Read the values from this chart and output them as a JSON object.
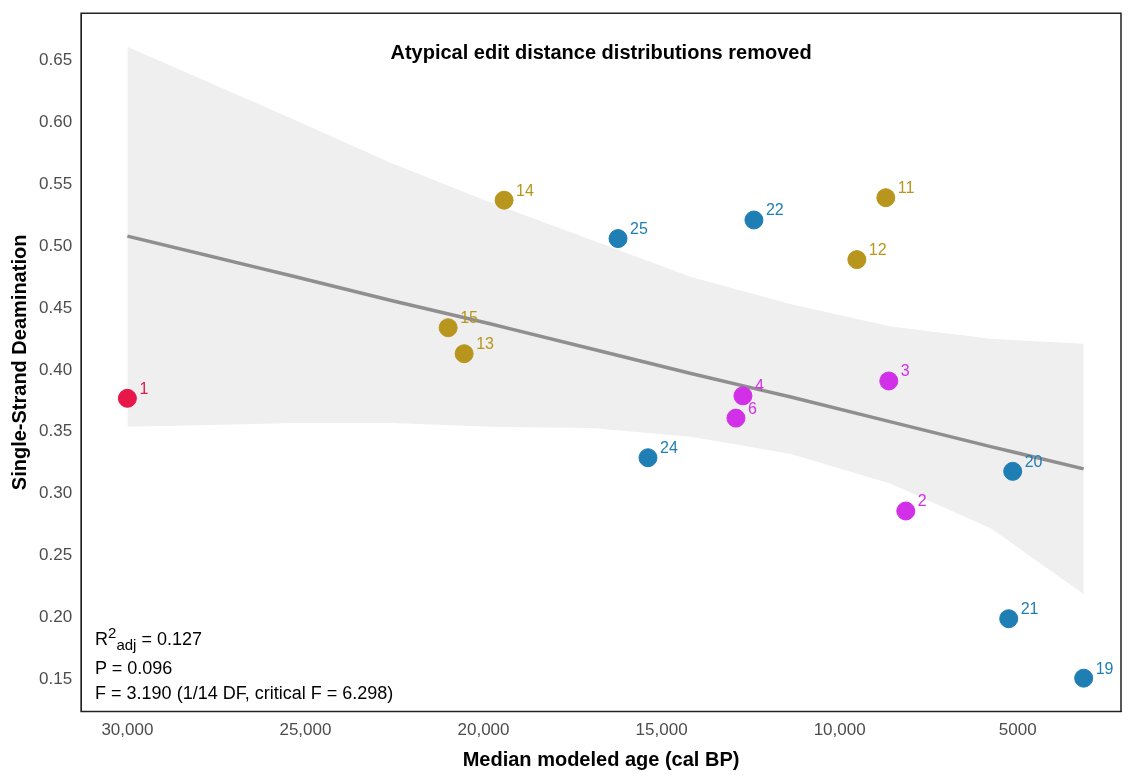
{
  "chart_data": {
    "type": "scatter",
    "title": "Atypical edit distance distributions removed",
    "xlabel": "Median modeled age (cal BP)",
    "ylabel": "Single-Strand Deamination",
    "xlim": [
      31300,
      2100
    ],
    "xticks": [
      {
        "value": 30000,
        "label": "30,000"
      },
      {
        "value": 25000,
        "label": "25,000"
      },
      {
        "value": 20000,
        "label": "20,000"
      },
      {
        "value": 15000,
        "label": "15,000"
      },
      {
        "value": 10000,
        "label": "10,000"
      },
      5000
    ],
    "ylim": [
      0.124,
      0.688
    ],
    "yticks": [
      0.15,
      {
        "value": 0.2,
        "label": "0.20"
      },
      0.25,
      {
        "value": 0.3,
        "label": "0.30"
      },
      0.35,
      {
        "value": 0.4,
        "label": "0.40"
      },
      0.45,
      {
        "value": 0.5,
        "label": "0.50"
      },
      0.55,
      {
        "value": 0.6,
        "label": "0.60"
      },
      0.65
    ],
    "marker": "circle",
    "series": [
      {
        "type": "line",
        "color": "#8f8f8f",
        "marker": "none",
        "x": [
          30000,
          25398,
          22593,
          19787,
          16981,
          14175,
          11369,
          8563,
          5758,
          3148
        ],
        "values": [
          0.508,
          0.476,
          0.456,
          0.437,
          0.417,
          0.397,
          0.378,
          0.358,
          0.338,
          0.32
        ],
        "lower": [
          0.354,
          0.357,
          0.357,
          0.354,
          0.353,
          0.346,
          0.332,
          0.308,
          0.272,
          0.219
        ],
        "upper": [
          0.661,
          0.603,
          0.567,
          0.535,
          0.505,
          0.475,
          0.453,
          0.435,
          0.425,
          0.421
        ]
      },
      {
        "color": "#e8174a",
        "x": [
          30000
        ],
        "values": [
          0.377
        ]
      },
      {
        "color": "#b8961e",
        "x": [
          19422,
          8704,
          9517,
          20993,
          20544
        ],
        "values": [
          0.537,
          0.539,
          0.489,
          0.434,
          0.413
        ]
      },
      {
        "color": "#1f7eb4",
        "x": [
          16223,
          12407,
          15382,
          5141,
          5253,
          3148
        ],
        "values": [
          0.506,
          0.521,
          0.329,
          0.318,
          0.199,
          0.151
        ]
      },
      {
        "color": "#d22fe8",
        "x": [
          8620,
          12716,
          12912,
          8143
        ],
        "values": [
          0.391,
          0.379,
          0.361,
          0.286
        ]
      }
    ],
    "annotations": [
      {
        "text": "1",
        "x": 30000,
        "y": 0.377
      },
      {
        "text": "14",
        "x": 19422,
        "y": 0.537
      },
      {
        "text": "11",
        "x": 8704,
        "y": 0.539
      },
      {
        "text": "12",
        "x": 9517,
        "y": 0.489
      },
      {
        "text": "15",
        "x": 20993,
        "y": 0.434
      },
      {
        "text": "13",
        "x": 20544,
        "y": 0.413
      },
      {
        "text": "25",
        "x": 16223,
        "y": 0.506
      },
      {
        "text": "22",
        "x": 12407,
        "y": 0.521
      },
      {
        "text": "24",
        "x": 15382,
        "y": 0.329
      },
      {
        "text": "20",
        "x": 5141,
        "y": 0.318
      },
      {
        "text": "21",
        "x": 5253,
        "y": 0.199
      },
      {
        "text": "19",
        "x": 3148,
        "y": 0.151
      },
      {
        "text": "3",
        "x": 8620,
        "y": 0.391
      },
      {
        "text": "4",
        "x": 12716,
        "y": 0.379
      },
      {
        "text": "6",
        "x": 12912,
        "y": 0.361
      },
      {
        "text": "2",
        "x": 8143,
        "y": 0.286
      },
      "R$^{2}$$_{adj}$ = 0.127",
      "P = 0.096",
      "F = 3.190 (1/14 DF, critical F = 6.298)"
    ]
  }
}
